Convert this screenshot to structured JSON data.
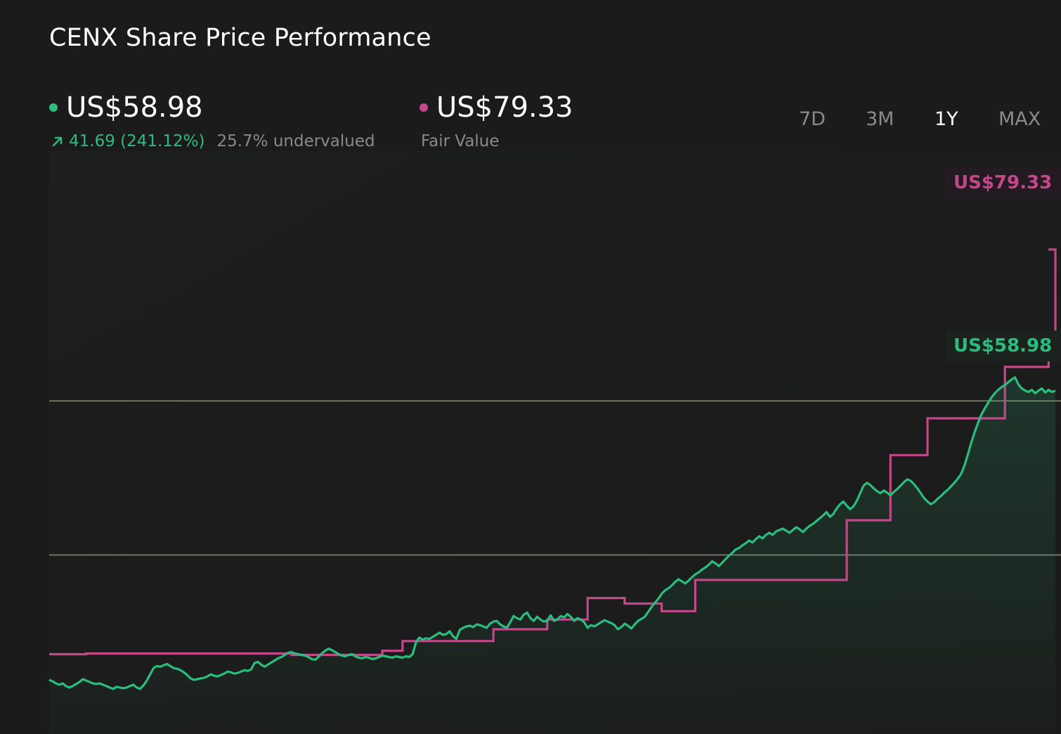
{
  "title": "CENX Share Price Performance",
  "current": {
    "price": "US$58.98",
    "change": "41.69 (241.12%)",
    "valuation": "25.7% undervalued",
    "color": "#2bbd7e"
  },
  "fair_value": {
    "price": "US$79.33",
    "label": "Fair Value",
    "color": "#c4478a"
  },
  "tabs": [
    "7D",
    "3M",
    "1Y",
    "MAX"
  ],
  "active_tab": "1Y",
  "chart_data": {
    "type": "line",
    "title": "CENX Share Price Performance",
    "xlabel": "",
    "ylabel": "",
    "grid": "horizontal reference lines only",
    "x_points": 300,
    "ylim": [
      9.5,
      93.5
    ],
    "series": [
      {
        "name": "",
        "kind": "share price",
        "color": "#2bbd7e",
        "area_fill": true,
        "values": [
          17.3,
          17.1,
          16.8,
          16.6,
          16.8,
          16.4,
          16.2,
          16.4,
          16.7,
          17.0,
          17.4,
          17.2,
          17.0,
          16.8,
          16.7,
          16.8,
          16.6,
          16.4,
          16.2,
          16.0,
          16.3,
          16.2,
          16.1,
          16.2,
          16.4,
          16.6,
          16.2,
          16.0,
          16.5,
          17.2,
          18.1,
          19.0,
          19.3,
          19.2,
          19.4,
          19.6,
          19.3,
          19.0,
          18.9,
          18.7,
          18.4,
          18.0,
          17.5,
          17.3,
          17.4,
          17.5,
          17.6,
          17.8,
          18.1,
          17.9,
          17.8,
          18.0,
          18.2,
          18.5,
          18.4,
          18.2,
          18.3,
          18.5,
          18.7,
          18.6,
          18.8,
          19.7,
          19.9,
          19.5,
          19.2,
          19.5,
          19.8,
          20.1,
          20.4,
          20.6,
          20.9,
          21.2,
          21.3,
          21.1,
          21.0,
          20.9,
          20.8,
          20.6,
          20.3,
          20.2,
          20.6,
          21.1,
          21.5,
          21.8,
          21.6,
          21.3,
          21.0,
          20.8,
          20.7,
          20.9,
          21.0,
          20.7,
          20.5,
          20.4,
          20.6,
          20.5,
          20.3,
          20.4,
          20.6,
          20.8,
          20.7,
          20.6,
          20.5,
          20.7,
          20.6,
          20.5,
          20.7,
          20.6,
          21.0,
          22.7,
          23.4,
          23.1,
          23.3,
          23.2,
          23.5,
          23.8,
          24.1,
          23.8,
          23.9,
          24.3,
          23.6,
          23.2,
          24.5,
          24.8,
          25.0,
          25.1,
          24.9,
          25.3,
          25.2,
          25.0,
          24.8,
          25.4,
          25.7,
          25.8,
          25.3,
          25.0,
          24.8,
          25.6,
          26.5,
          26.2,
          26.0,
          26.7,
          27.0,
          26.2,
          25.8,
          26.4,
          26.0,
          25.7,
          25.8,
          26.6,
          25.8,
          26.0,
          26.5,
          26.3,
          26.8,
          26.4,
          25.8,
          26.2,
          26.0,
          25.6,
          24.8,
          25.2,
          25.0,
          25.3,
          25.6,
          25.9,
          25.7,
          25.5,
          25.2,
          24.6,
          24.9,
          25.4,
          25.1,
          24.7,
          25.3,
          25.8,
          26.1,
          26.4,
          27.1,
          27.8,
          28.4,
          29.0,
          29.7,
          30.2,
          30.5,
          30.9,
          31.4,
          31.8,
          31.5,
          31.2,
          31.6,
          32.1,
          32.5,
          32.8,
          33.2,
          33.5,
          33.9,
          34.4,
          34.1,
          33.7,
          34.2,
          34.7,
          35.2,
          35.6,
          36.1,
          36.3,
          36.7,
          37.0,
          37.4,
          37.1,
          37.6,
          38.0,
          37.7,
          38.2,
          38.5,
          38.2,
          38.7,
          38.9,
          39.1,
          38.8,
          38.5,
          38.9,
          39.3,
          39.0,
          38.6,
          39.1,
          39.5,
          39.8,
          40.2,
          40.6,
          41.0,
          41.5,
          40.8,
          41.2,
          42.0,
          42.6,
          43.0,
          42.4,
          41.9,
          42.3,
          43.1,
          44.2,
          45.3,
          45.7,
          45.4,
          44.9,
          44.5,
          44.2,
          44.6,
          44.3,
          43.9,
          44.4,
          44.8,
          45.3,
          45.8,
          46.2,
          46.0,
          45.5,
          44.9,
          44.2,
          43.5,
          43.0,
          42.6,
          42.9,
          43.4,
          43.8,
          44.3,
          44.7,
          45.2,
          45.7,
          46.3,
          47.0,
          48.2,
          49.8,
          51.5,
          53.0,
          54.3,
          55.5,
          56.4,
          57.2,
          58.0,
          58.6,
          59.1,
          59.5,
          59.8,
          60.2,
          60.6,
          60.9,
          59.9,
          59.3,
          59.0,
          58.8,
          59.1,
          58.6,
          59.0,
          59.3,
          58.7,
          59.1,
          58.8,
          58.98
        ]
      },
      {
        "name": "Fair Value",
        "kind": "fair value",
        "color": "#c4478a",
        "step": true,
        "values_by_segment": [
          {
            "from": 0,
            "to": 11,
            "value": 21.0
          },
          {
            "from": 11,
            "to": 72,
            "value": 21.1
          },
          {
            "from": 72,
            "to": 99,
            "value": 20.9
          },
          {
            "from": 99,
            "to": 105,
            "value": 21.5
          },
          {
            "from": 105,
            "to": 132,
            "value": 22.9
          },
          {
            "from": 132,
            "to": 148,
            "value": 24.6
          },
          {
            "from": 148,
            "to": 160,
            "value": 26.0
          },
          {
            "from": 160,
            "to": 171,
            "value": 29.1
          },
          {
            "from": 171,
            "to": 182,
            "value": 28.3
          },
          {
            "from": 182,
            "to": 192,
            "value": 27.2
          },
          {
            "from": 192,
            "to": 237,
            "value": 31.7
          },
          {
            "from": 237,
            "to": 250,
            "value": 40.3
          },
          {
            "from": 250,
            "to": 261,
            "value": 49.7
          },
          {
            "from": 261,
            "to": 284,
            "value": 55.0
          },
          {
            "from": 284,
            "to": 297,
            "value": 62.4
          },
          {
            "from": 297,
            "to": 309,
            "value": 64.7
          },
          {
            "from": 309,
            "to": 321,
            "value": 67.1
          },
          {
            "from": 321,
            "to": 322,
            "value": 79.33
          }
        ]
      }
    ],
    "reference_lines": [
      {
        "value": 57.5
      },
      {
        "value": 35.3
      }
    ],
    "tags": [
      {
        "text": "US$79.33"
      },
      {
        "text": "US$58.98"
      }
    ]
  }
}
